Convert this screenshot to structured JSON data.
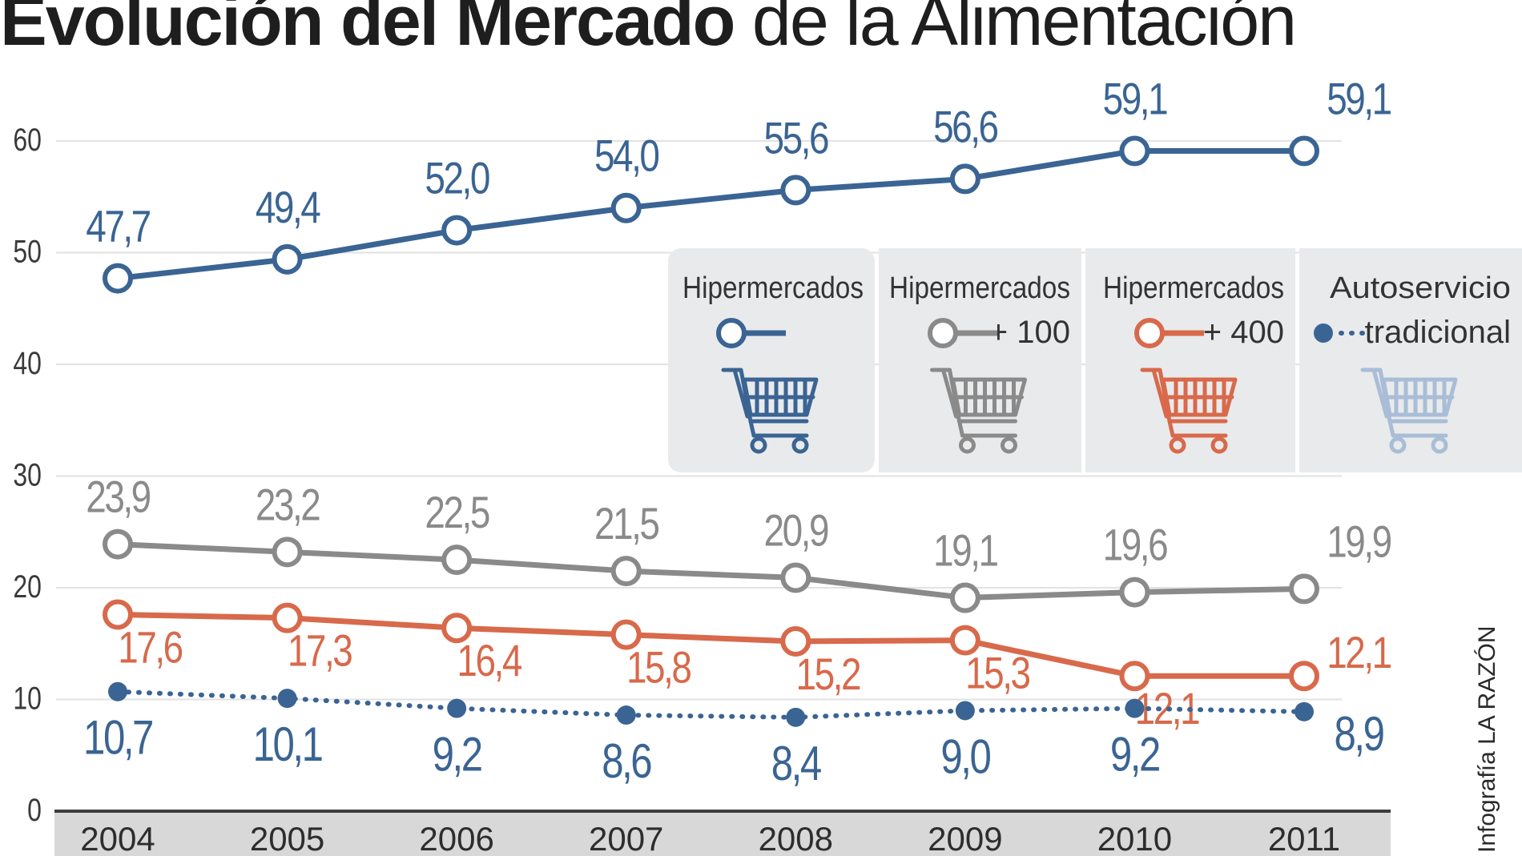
{
  "title": {
    "bold": "Evolución del Mercado",
    "light": "de la Alimentación"
  },
  "credit": "Infografía LA RAZÓN",
  "legend": [
    {
      "label": "Hipermercados",
      "sub": "",
      "series": "hiper"
    },
    {
      "label": "Hipermercados",
      "sub": "+ 100",
      "series": "hiper100"
    },
    {
      "label": "Hipermercados",
      "sub": "+ 400",
      "series": "hiper400"
    },
    {
      "label": "Autoservicio",
      "sub": "tradicional",
      "series": "auto"
    }
  ],
  "colors": {
    "blue": "#3a6493",
    "gray": "#8a8a8a",
    "orange": "#d8694b",
    "lightblue": "#a9bdd6",
    "panel": "#e9eaec",
    "axis": "#3d3d3d",
    "grid": "#e2e2e2",
    "xband": "#d8d8d8"
  },
  "chart_data": {
    "type": "line",
    "x": [
      "2004",
      "2005",
      "2006",
      "2007",
      "2008",
      "2009",
      "2010",
      "2011"
    ],
    "ylim": [
      0,
      65
    ],
    "yticks": [
      "0",
      "10",
      "20",
      "30",
      "40",
      "50",
      "60"
    ],
    "grid": true,
    "legend_position": "top-right",
    "series": [
      {
        "key": "hiper",
        "name": "Hipermercados",
        "color": "#3a6493",
        "style": "solid",
        "marker": "hollow",
        "values": [
          47.7,
          49.4,
          52.0,
          54.0,
          55.6,
          56.6,
          59.1,
          59.1
        ],
        "labels": [
          "47,7",
          "49,4",
          "52,0",
          "54,0",
          "55,6",
          "56,6",
          "59,1",
          "59,1"
        ]
      },
      {
        "key": "hiper100",
        "name": "Hipermercados + 100",
        "color": "#8a8a8a",
        "style": "solid",
        "marker": "hollow",
        "values": [
          23.9,
          23.2,
          22.5,
          21.5,
          20.9,
          19.1,
          19.6,
          19.9
        ],
        "labels": [
          "23,9",
          "23,2",
          "22,5",
          "21,5",
          "20,9",
          "19,1",
          "19,6",
          "19,9"
        ]
      },
      {
        "key": "hiper400",
        "name": "Hipermercados + 400",
        "color": "#d8694b",
        "style": "solid",
        "marker": "hollow",
        "values": [
          17.6,
          17.3,
          16.4,
          15.8,
          15.2,
          15.3,
          12.1,
          12.1
        ],
        "labels": [
          "17,6",
          "17,3",
          "16,4",
          "15,8",
          "15,2",
          "15,3",
          "12,1",
          "12,1"
        ]
      },
      {
        "key": "auto",
        "name": "Autoservicio tradicional",
        "color": "#3a6493",
        "style": "dotted",
        "marker": "filled",
        "values": [
          10.7,
          10.1,
          9.2,
          8.6,
          8.4,
          9.0,
          9.2,
          8.9
        ],
        "labels": [
          "10,7",
          "10,1",
          "9,2",
          "8,6",
          "8,4",
          "9,0",
          "9,2",
          "8,9"
        ]
      }
    ]
  }
}
